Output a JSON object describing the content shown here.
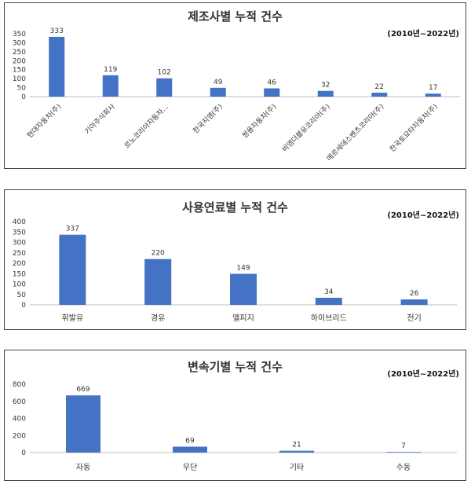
{
  "chart_data": [
    {
      "type": "bar",
      "title": "제조사별 누적 건수",
      "subtitle": "(2010년~2022년)",
      "categories": [
        "현대자동차(주)",
        "기아주식회사",
        "르노코리아자동차…",
        "한국지엠(주)",
        "쌍용자동차(주)",
        "비엠더블유코리아(주)",
        "메르세데스벤츠코리아(주)",
        "한국토요타자동차(주)"
      ],
      "values": [
        333,
        119,
        102,
        49,
        46,
        32,
        22,
        17
      ],
      "ylim": [
        0,
        350
      ],
      "yticks": [
        0,
        50,
        100,
        150,
        200,
        250,
        300,
        350
      ],
      "color": "#4472C4",
      "grid": false,
      "xlabel": "",
      "ylabel": ""
    },
    {
      "type": "bar",
      "title": "사용연료별 누적 건수",
      "subtitle": "(2010년~2022년)",
      "categories": [
        "휘발유",
        "경유",
        "엘피지",
        "하이브리드",
        "전기"
      ],
      "values": [
        337,
        220,
        149,
        34,
        26
      ],
      "ylim": [
        0,
        400
      ],
      "yticks": [
        0,
        50,
        100,
        150,
        200,
        250,
        300,
        350,
        400
      ],
      "color": "#4472C4",
      "grid": false,
      "xlabel": "",
      "ylabel": ""
    },
    {
      "type": "bar",
      "title": "변속기별 누적 건수",
      "subtitle": "(2010년~2022년)",
      "categories": [
        "자동",
        "무단",
        "기타",
        "수동"
      ],
      "values": [
        669,
        69,
        21,
        7
      ],
      "ylim": [
        0,
        800
      ],
      "yticks": [
        0,
        200,
        400,
        600,
        800
      ],
      "color": "#4472C4",
      "grid": false,
      "xlabel": "",
      "ylabel": ""
    }
  ]
}
